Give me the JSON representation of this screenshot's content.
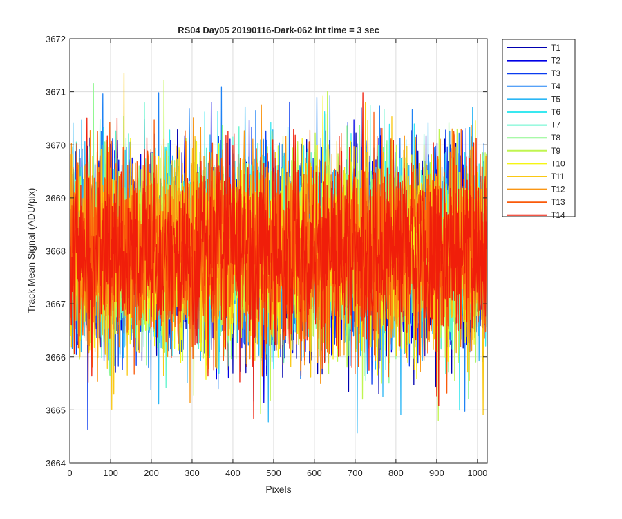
{
  "chart_data": {
    "type": "line",
    "title": "RS04 Day05 20190116-Dark-062 int time = 3 sec",
    "xlabel": "Pixels",
    "ylabel": "Track Mean Signal (ADU/pix)",
    "xlim": [
      0,
      1024
    ],
    "ylim": [
      3664,
      3672
    ],
    "xticks": [
      0,
      100,
      200,
      300,
      400,
      500,
      600,
      700,
      800,
      900,
      1000
    ],
    "yticks": [
      3664,
      3665,
      3666,
      3667,
      3668,
      3669,
      3670,
      3671,
      3672
    ],
    "grid": true,
    "legend_position": "outside-top-right",
    "noise": {
      "points_per_series": 1024,
      "mean": 3668,
      "std_dev": 0.9,
      "extreme_min": 3664.1,
      "extreme_max": 3671.9
    },
    "series": [
      {
        "name": "T1",
        "color": "#0000b0"
      },
      {
        "name": "T2",
        "color": "#0000e6"
      },
      {
        "name": "T3",
        "color": "#0a3cf0"
      },
      {
        "name": "T4",
        "color": "#1e82f5"
      },
      {
        "name": "T5",
        "color": "#2bb6f5"
      },
      {
        "name": "T6",
        "color": "#39e8f0"
      },
      {
        "name": "T7",
        "color": "#5ff5cc"
      },
      {
        "name": "T8",
        "color": "#8cf78c"
      },
      {
        "name": "T9",
        "color": "#c0f550"
      },
      {
        "name": "T10",
        "color": "#f5f514"
      },
      {
        "name": "T11",
        "color": "#fac814"
      },
      {
        "name": "T12",
        "color": "#fa9614"
      },
      {
        "name": "T13",
        "color": "#fa5a0a"
      },
      {
        "name": "T14",
        "color": "#f01e0a"
      }
    ]
  }
}
